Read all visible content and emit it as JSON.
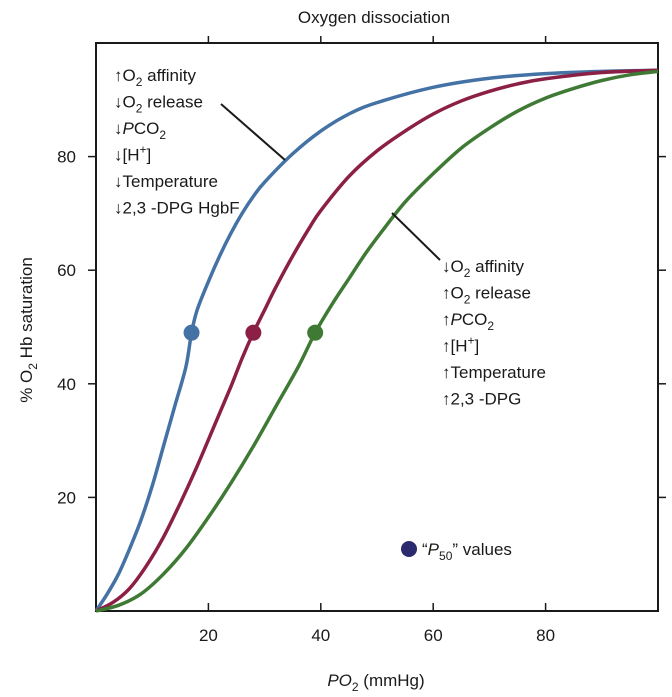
{
  "chart_data": {
    "type": "line",
    "title": "Oxygen dissociation",
    "xlabel": {
      "italic": "P",
      "main": "O",
      "sub": "2",
      "rest": " (mmHg)"
    },
    "ylabel": {
      "pre": "% O",
      "sub": "2",
      "post": " Hb saturation"
    },
    "xlim": [
      0,
      100
    ],
    "ylim": [
      0,
      100
    ],
    "xticks": [
      20,
      40,
      60,
      80
    ],
    "yticks": [
      20,
      40,
      60,
      80
    ],
    "grid": false,
    "series": [
      {
        "color": "#4472a4",
        "points": [
          [
            0,
            0
          ],
          [
            2,
            3
          ],
          [
            4,
            6.5
          ],
          [
            6,
            11
          ],
          [
            8,
            16
          ],
          [
            10,
            22
          ],
          [
            12,
            29
          ],
          [
            14,
            36
          ],
          [
            16,
            43
          ],
          [
            17,
            49
          ],
          [
            18,
            53
          ],
          [
            20,
            58
          ],
          [
            22,
            62.5
          ],
          [
            24,
            66.5
          ],
          [
            26,
            70
          ],
          [
            28,
            73
          ],
          [
            30,
            75.5
          ],
          [
            35,
            80.5
          ],
          [
            40,
            84.5
          ],
          [
            45,
            87.5
          ],
          [
            50,
            89.5
          ],
          [
            60,
            92.2
          ],
          [
            70,
            93.8
          ],
          [
            80,
            94.6
          ],
          [
            90,
            95
          ],
          [
            100,
            95.2
          ]
        ],
        "p50": [
          17,
          49
        ]
      },
      {
        "color": "#8b1f45",
        "points": [
          [
            0,
            0
          ],
          [
            3,
            1.5
          ],
          [
            6,
            4
          ],
          [
            9,
            8
          ],
          [
            12,
            13
          ],
          [
            15,
            19
          ],
          [
            18,
            25.5
          ],
          [
            21,
            32.5
          ],
          [
            24,
            39.5
          ],
          [
            26,
            44.5
          ],
          [
            28,
            49
          ],
          [
            30,
            53
          ],
          [
            32,
            57
          ],
          [
            35,
            62.5
          ],
          [
            38,
            67.5
          ],
          [
            40,
            70.5
          ],
          [
            45,
            76.5
          ],
          [
            50,
            81
          ],
          [
            55,
            84.5
          ],
          [
            60,
            87.5
          ],
          [
            65,
            89.8
          ],
          [
            70,
            91.5
          ],
          [
            75,
            92.8
          ],
          [
            80,
            93.7
          ],
          [
            90,
            94.8
          ],
          [
            100,
            95.2
          ]
        ],
        "p50": [
          28,
          49
        ]
      },
      {
        "color": "#3f7a35",
        "points": [
          [
            0,
            0
          ],
          [
            4,
            1
          ],
          [
            8,
            3
          ],
          [
            12,
            6.5
          ],
          [
            16,
            11
          ],
          [
            20,
            16.5
          ],
          [
            24,
            22.5
          ],
          [
            28,
            29
          ],
          [
            32,
            36
          ],
          [
            36,
            43
          ],
          [
            39,
            49
          ],
          [
            42,
            54
          ],
          [
            45,
            58.5
          ],
          [
            48,
            63
          ],
          [
            51,
            67
          ],
          [
            55,
            72
          ],
          [
            60,
            77
          ],
          [
            65,
            81.5
          ],
          [
            70,
            85
          ],
          [
            75,
            88
          ],
          [
            80,
            90.3
          ],
          [
            85,
            92
          ],
          [
            90,
            93.4
          ],
          [
            95,
            94.4
          ],
          [
            100,
            95
          ]
        ],
        "p50": [
          39,
          49
        ]
      }
    ],
    "annotations_left": [
      {
        "arrow": "↑",
        "pre": "O",
        "sub": "2",
        "post": " affinity"
      },
      {
        "arrow": "↓",
        "pre": "O",
        "sub": "2",
        "post": " release"
      },
      {
        "arrow": "↓",
        "italic": "P",
        "pre": "CO",
        "sub": "2",
        "post": ""
      },
      {
        "arrow": "↓",
        "pre": "[H",
        "sup": "+",
        "post": "]"
      },
      {
        "arrow": "↓",
        "pre": "Temperature",
        "post": ""
      },
      {
        "arrow": "↓",
        "pre": "2,3 -DPG",
        "post": ""
      },
      {
        "arrow": "",
        "pre": " HgbF",
        "post": ""
      }
    ],
    "annotations_right": [
      {
        "arrow": "↓",
        "pre": "O",
        "sub": "2",
        "post": " affinity"
      },
      {
        "arrow": "↑",
        "pre": "O",
        "sub": "2",
        "post": " release"
      },
      {
        "arrow": "↑",
        "italic": "P",
        "pre": "CO",
        "sub": "2",
        "post": ""
      },
      {
        "arrow": "↑",
        "pre": "[H",
        "sup": "+",
        "post": "]"
      },
      {
        "arrow": "↑",
        "pre": "Temperature",
        "post": ""
      },
      {
        "arrow": "↑",
        "pre": "2,3 -DPG",
        "post": ""
      }
    ],
    "legend": {
      "marker_color": "#2b2a6e",
      "open_quote": "“",
      "italic": "P",
      "sub": "50",
      "post": "” values"
    }
  }
}
